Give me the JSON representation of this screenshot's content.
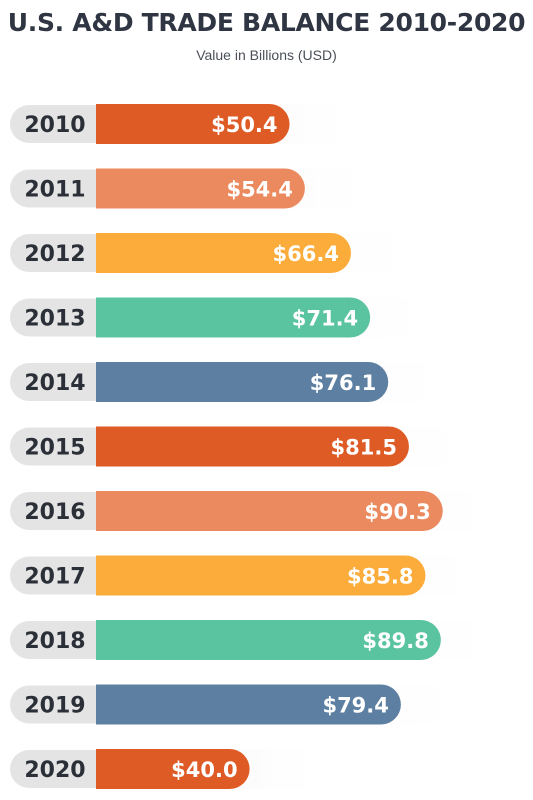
{
  "title": "U.S. A&D TRADE BALANCE 2010-2020",
  "subtitle": "Value in Billions (USD)",
  "chart_data": {
    "type": "bar",
    "orientation": "horizontal",
    "title": "U.S. A&D TRADE BALANCE 2010-2020",
    "subtitle": "Value in Billions (USD)",
    "categories": [
      "2010",
      "2011",
      "2012",
      "2013",
      "2014",
      "2015",
      "2016",
      "2017",
      "2018",
      "2019",
      "2020"
    ],
    "values": [
      50.4,
      54.4,
      66.4,
      71.4,
      76.1,
      81.5,
      90.3,
      85.8,
      89.8,
      79.4,
      40.0
    ],
    "value_labels": [
      "$50.4",
      "$54.4",
      "$66.4",
      "$71.4",
      "$76.1",
      "$81.5",
      "$90.3",
      "$85.8",
      "$89.8",
      "$79.4",
      "$40.0"
    ],
    "colors": [
      "#de5b26",
      "#ec8a5f",
      "#fbac3a",
      "#5ac4a1",
      "#5d7fa2",
      "#de5b26",
      "#ec8a5f",
      "#fbac3a",
      "#5ac4a1",
      "#5d7fa2",
      "#de5b26"
    ],
    "xlim": [
      0,
      100
    ],
    "grid": false,
    "legend": "none"
  }
}
